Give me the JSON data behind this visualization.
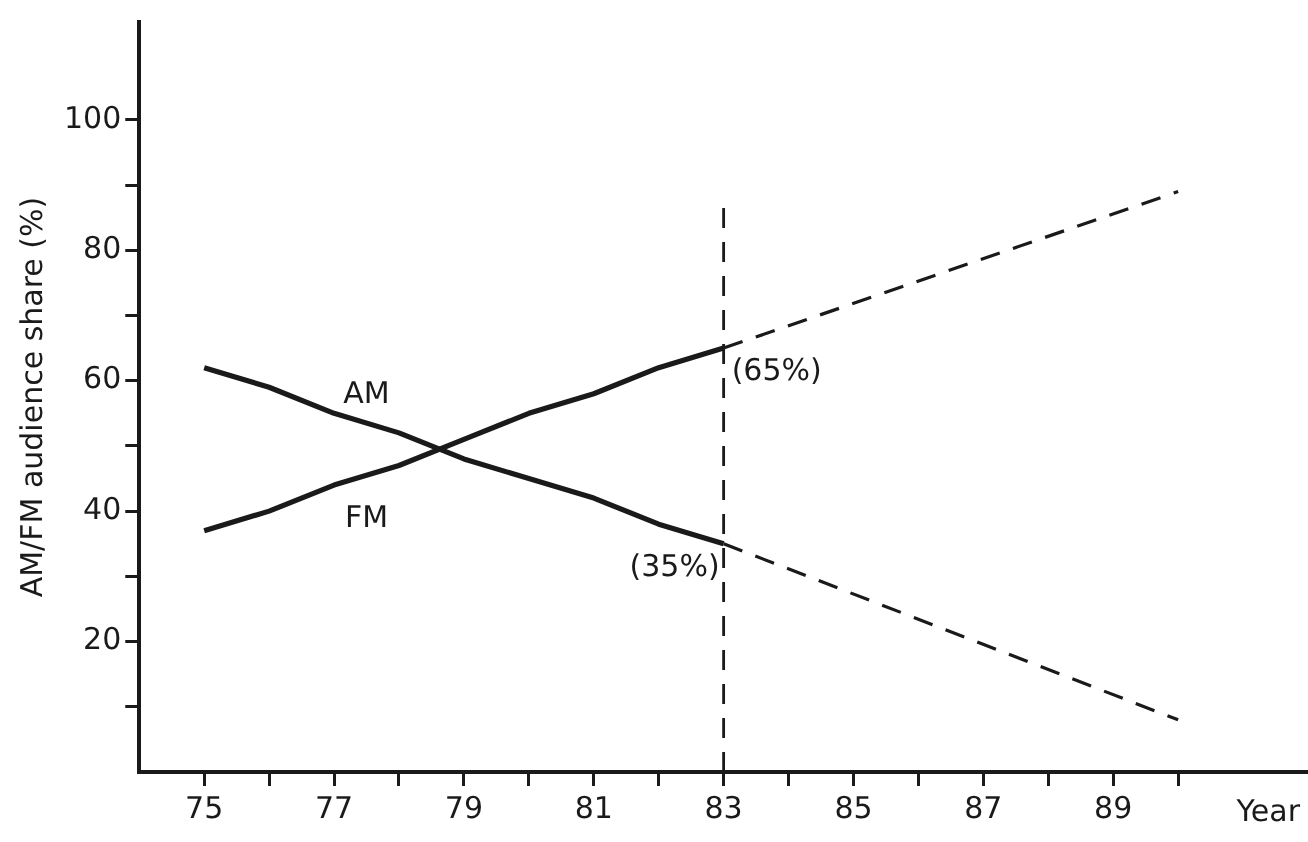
{
  "chart_data": {
    "type": "line",
    "xlabel": "Year",
    "ylabel": "AM/FM audience share (%)",
    "xlim": [
      74,
      92
    ],
    "ylim": [
      0,
      115
    ],
    "xticks": [
      75,
      {
        "value": 76,
        "label": null
      },
      77,
      {
        "value": 78,
        "label": null
      },
      79,
      {
        "value": 80,
        "label": null
      },
      81,
      {
        "value": 82,
        "label": null
      },
      83,
      {
        "value": 84,
        "label": null
      },
      85,
      {
        "value": 86,
        "label": null
      },
      87,
      {
        "value": 88,
        "label": null
      },
      89,
      {
        "value": 90,
        "label": null
      }
    ],
    "yticks": [
      {
        "value": 10,
        "label": null
      },
      20,
      {
        "value": 30,
        "label": null
      },
      40,
      {
        "value": 50,
        "label": null
      },
      60,
      {
        "value": 70,
        "label": null
      },
      80,
      {
        "value": 90,
        "label": null
      },
      100
    ],
    "series": [
      {
        "name": "AM",
        "color": "#1a1a1a",
        "x": [
          75,
          76,
          77,
          78,
          79,
          80,
          81,
          82,
          83
        ],
        "values": [
          62,
          59,
          55,
          52,
          48,
          45,
          42,
          38,
          35
        ],
        "line_style": "solid"
      },
      {
        "name": "FM",
        "color": "#1a1a1a",
        "x": [
          75,
          76,
          77,
          78,
          79,
          80,
          81,
          82,
          83
        ],
        "values": [
          37,
          40,
          44,
          47,
          51,
          55,
          58,
          62,
          65
        ],
        "line_style": "solid"
      },
      {
        "color": "#1a1a1a",
        "x": [
          83,
          90
        ],
        "values": [
          35,
          8
        ],
        "line_style": "dashed"
      },
      {
        "color": "#1a1a1a",
        "x": [
          83,
          90
        ],
        "values": [
          65,
          89
        ],
        "line_style": "dashed"
      }
    ],
    "ref_lines": [
      {
        "axis": "x",
        "value": 83,
        "line_style": "dashed",
        "color": "#1a1a1a"
      }
    ],
    "annotations": [
      {
        "text": "(65%)",
        "x": 83,
        "y": 65
      },
      {
        "text": "(35%)",
        "x": 83,
        "y": 35
      }
    ],
    "grid": false,
    "legend": false,
    "marker": "none"
  }
}
